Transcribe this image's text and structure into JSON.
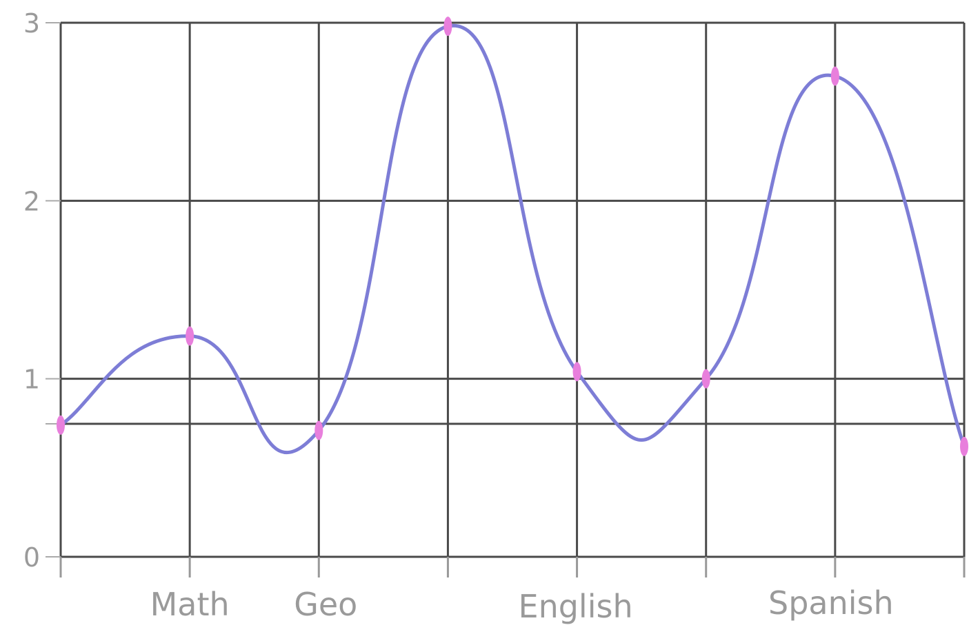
{
  "chart_data": {
    "type": "line",
    "title": "",
    "xlabel": "",
    "ylabel": "",
    "x_ticks": [
      "",
      "Math",
      "Geo",
      "",
      "English",
      "",
      "Spanish",
      ""
    ],
    "y_ticks": [
      "0",
      "",
      "1",
      "2",
      "3"
    ],
    "ylim": [
      0,
      3
    ],
    "grid": true,
    "legend": "none",
    "series": [
      {
        "values": [
          0.74,
          1.24,
          0.71,
          2.98,
          1.04,
          1.0,
          2.7,
          0.62
        ]
      }
    ],
    "colors": {
      "line": "#7d7dd6",
      "marker": "#e87fdc",
      "grid": "#4a4a4a",
      "tick_text": "#9a9a9a",
      "axis": "#999999"
    }
  }
}
